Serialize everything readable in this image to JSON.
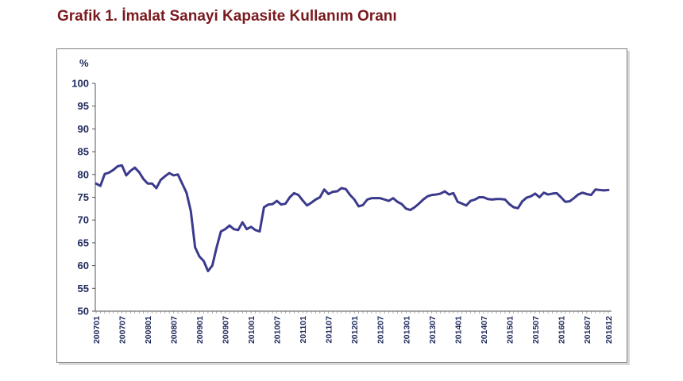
{
  "chart_data": {
    "type": "line",
    "title": "Grafik 1. İmalat Sanayi Kapasite Kullanım Oranı",
    "ylabel": "%",
    "xlabel": "",
    "ylim": [
      50,
      100
    ],
    "yticks": [
      "50",
      "55",
      "60",
      "65",
      "70",
      "75",
      "80",
      "85",
      "90",
      "95",
      "100"
    ],
    "xtick_labels": [
      "200701",
      "200707",
      "200801",
      "200807",
      "200901",
      "200907",
      "201001",
      "201007",
      "201101",
      "201107",
      "201201",
      "201207",
      "201301",
      "201307",
      "201401",
      "201407",
      "201501",
      "201507",
      "201601",
      "201607",
      "201612"
    ],
    "grid": false,
    "legend": "none",
    "line_color": "#3b3a8c",
    "x": [
      "200701",
      "200702",
      "200703",
      "200704",
      "200705",
      "200706",
      "200707",
      "200708",
      "200709",
      "200710",
      "200711",
      "200712",
      "200801",
      "200802",
      "200803",
      "200804",
      "200805",
      "200806",
      "200807",
      "200808",
      "200809",
      "200810",
      "200811",
      "200812",
      "200901",
      "200902",
      "200903",
      "200904",
      "200905",
      "200906",
      "200907",
      "200908",
      "200909",
      "200910",
      "200911",
      "200912",
      "201001",
      "201002",
      "201003",
      "201004",
      "201005",
      "201006",
      "201007",
      "201008",
      "201009",
      "201010",
      "201011",
      "201012",
      "201101",
      "201102",
      "201103",
      "201104",
      "201105",
      "201106",
      "201107",
      "201108",
      "201109",
      "201110",
      "201111",
      "201112",
      "201201",
      "201202",
      "201203",
      "201204",
      "201205",
      "201206",
      "201207",
      "201208",
      "201209",
      "201210",
      "201211",
      "201212",
      "201301",
      "201302",
      "201303",
      "201304",
      "201305",
      "201306",
      "201307",
      "201308",
      "201309",
      "201310",
      "201311",
      "201312",
      "201401",
      "201402",
      "201403",
      "201404",
      "201405",
      "201406",
      "201407",
      "201408",
      "201409",
      "201410",
      "201411",
      "201412",
      "201501",
      "201502",
      "201503",
      "201504",
      "201505",
      "201506",
      "201507",
      "201508",
      "201509",
      "201510",
      "201511",
      "201512",
      "201601",
      "201602",
      "201603",
      "201604",
      "201605",
      "201606",
      "201607",
      "201608",
      "201609",
      "201610",
      "201611",
      "201612"
    ],
    "series": [
      {
        "values": [
          78.0,
          77.5,
          80.1,
          80.4,
          81.0,
          81.8,
          82.0,
          79.8,
          80.8,
          81.5,
          80.5,
          79.0,
          78.0,
          78.0,
          77.0,
          78.8,
          79.6,
          80.3,
          79.8,
          80.0,
          78.0,
          76.0,
          72.0,
          64.0,
          62.0,
          61.0,
          58.8,
          60.0,
          64.0,
          67.5,
          68.0,
          68.8,
          68.0,
          67.8,
          69.5,
          68.0,
          68.5,
          67.8,
          67.5,
          72.8,
          73.4,
          73.5,
          74.2,
          73.4,
          73.6,
          75.0,
          75.9,
          75.5,
          74.3,
          73.2,
          73.8,
          74.5,
          75.0,
          76.7,
          75.7,
          76.2,
          76.3,
          77.0,
          76.8,
          75.5,
          74.5,
          73.0,
          73.3,
          74.5,
          74.8,
          74.8,
          74.8,
          74.5,
          74.2,
          74.8,
          74.0,
          73.5,
          72.5,
          72.2,
          72.8,
          73.6,
          74.5,
          75.2,
          75.5,
          75.6,
          75.8,
          76.3,
          75.6,
          75.9,
          74.0,
          73.6,
          73.2,
          74.2,
          74.5,
          75.0,
          75.0,
          74.6,
          74.5,
          74.6,
          74.6,
          74.5,
          73.5,
          72.8,
          72.6,
          74.1,
          74.9,
          75.2,
          75.8,
          75.0,
          76.0,
          75.6,
          75.8,
          75.9,
          75.0,
          74.0,
          74.1,
          74.8,
          75.6,
          76.0,
          75.7,
          75.5,
          76.7,
          76.6,
          76.5,
          76.6
        ]
      }
    ]
  }
}
